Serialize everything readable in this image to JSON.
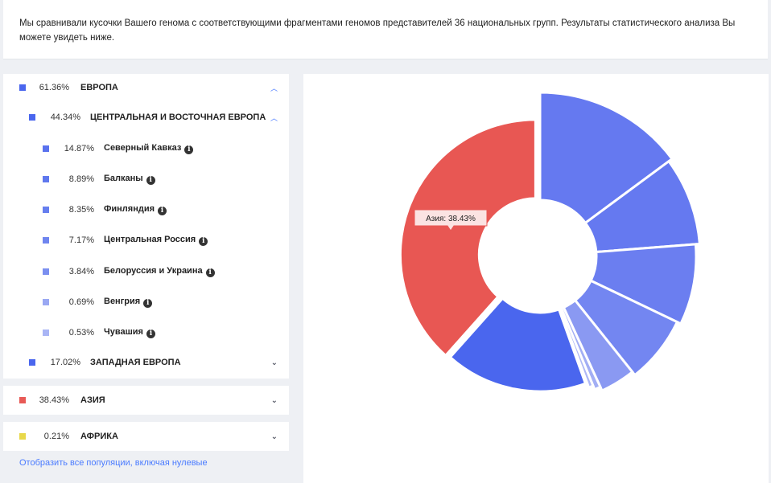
{
  "intro": {
    "text": "Мы сравнивали кусочки Вашего генома с соответствующими фрагментами геномов представителей 36 национальных групп. Результаты статистического анализа Вы можете увидеть ниже."
  },
  "europe": {
    "pct": "61.36%",
    "label": "ЕВРОПА",
    "color": "#4a66ee",
    "central": {
      "pct": "44.34%",
      "label": "ЦЕНТРАЛЬНАЯ И ВОСТОЧНАЯ ЕВРОПА",
      "color": "#4a66ee",
      "items": [
        {
          "pct": "14.87%",
          "label": "Северный Кавказ",
          "color": "#5a72ee"
        },
        {
          "pct": "8.89%",
          "label": "Балканы",
          "color": "#5f78ee"
        },
        {
          "pct": "8.35%",
          "label": "Финляндия",
          "color": "#667eef"
        },
        {
          "pct": "7.17%",
          "label": "Центральная Россия",
          "color": "#6f85ef"
        },
        {
          "pct": "3.84%",
          "label": "Белоруссия и Украина",
          "color": "#7b8ff0"
        },
        {
          "pct": "0.69%",
          "label": "Венгрия",
          "color": "#9aa8f3"
        },
        {
          "pct": "0.53%",
          "label": "Чувашия",
          "color": "#a9b5f5"
        }
      ]
    },
    "western": {
      "pct": "17.02%",
      "label": "ЗАПАДНАЯ ЕВРОПА",
      "color": "#4a66ee"
    }
  },
  "asia": {
    "pct": "38.43%",
    "label": "АЗИЯ",
    "color": "#e85a56"
  },
  "africa": {
    "pct": "0.21%",
    "label": "АФРИКА",
    "color": "#e8d84a"
  },
  "show_all_link": "Отобразить все популяции, включая нулевые",
  "icons": {
    "info": "info-icon",
    "expand": "chevron-down-icon",
    "collapse": "chevron-up-icon"
  },
  "chart_data": {
    "type": "pie",
    "slices": [
      {
        "name": "Северный Кавказ",
        "value": 14.87,
        "color": "#6579f0"
      },
      {
        "name": "Балканы",
        "value": 8.89,
        "color": "#6579f0"
      },
      {
        "name": "Финляндия",
        "value": 8.35,
        "color": "#6b7ef0"
      },
      {
        "name": "Центральная Россия",
        "value": 7.17,
        "color": "#7386f1"
      },
      {
        "name": "Белоруссия и Украина",
        "value": 3.84,
        "color": "#8a99f2"
      },
      {
        "name": "Венгрия",
        "value": 0.69,
        "color": "#a2aef4"
      },
      {
        "name": "Чувашия",
        "value": 0.53,
        "color": "#aeb8f5"
      },
      {
        "name": "Африка",
        "value": 0.21,
        "color": "#b8c0f6"
      },
      {
        "name": "Западная Европа",
        "value": 17.02,
        "color": "#4a66ee"
      },
      {
        "name": "Азия",
        "value": 38.43,
        "color": "#e85753"
      }
    ],
    "tooltip": "Азия: 38.43%"
  }
}
